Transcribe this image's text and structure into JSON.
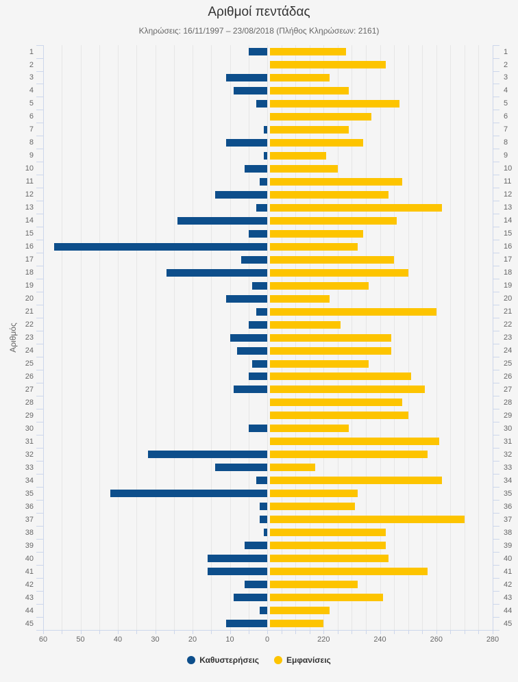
{
  "header": {
    "title": "Αριθμοί πεντάδας",
    "subtitle": "Κληρώσεις: 16/11/1997 – 23/08/2018 (Πλήθος Κληρώσεων: 2161)"
  },
  "colors": {
    "delay": "#0d4e8b",
    "appearance": "#fdc400",
    "grid": "#e6e6e6",
    "axis": "#ccd6eb",
    "label": "#666666",
    "title": "#333333"
  },
  "legend": {
    "items": [
      {
        "label": "Καθυστερήσεις",
        "color": "#0d4e8b"
      },
      {
        "label": "Εμφανίσεις",
        "color": "#fdc400"
      }
    ]
  },
  "chart_data": {
    "type": "bar",
    "orientation": "horizontal-mirrored",
    "title": "Αριθμοί πεντάδας",
    "subtitle": "Κληρώσεις: 16/11/1997 – 23/08/2018 (Πλήθος Κληρώσεων: 2161)",
    "ylabel": "Αριθμός",
    "grid": "on",
    "legend_position": "bottom",
    "categories": [
      1,
      2,
      3,
      4,
      5,
      6,
      7,
      8,
      9,
      10,
      11,
      12,
      13,
      14,
      15,
      16,
      17,
      18,
      19,
      20,
      21,
      22,
      23,
      24,
      25,
      26,
      27,
      28,
      29,
      30,
      31,
      32,
      33,
      34,
      35,
      36,
      37,
      38,
      39,
      40,
      41,
      42,
      43,
      44,
      45
    ],
    "series": [
      {
        "name": "Καθυστερήσεις",
        "color": "#0d4e8b",
        "axis": "left",
        "values": [
          5,
          0,
          11,
          9,
          3,
          0,
          1,
          11,
          1,
          6,
          2,
          14,
          3,
          24,
          5,
          57,
          7,
          27,
          4,
          11,
          3,
          5,
          10,
          8,
          4,
          5,
          9,
          0,
          0,
          5,
          0,
          32,
          14,
          3,
          42,
          2,
          2,
          1,
          6,
          16,
          16,
          6,
          9,
          2,
          11
        ]
      },
      {
        "name": "Εμφανίσεις",
        "color": "#fdc400",
        "axis": "right",
        "values": [
          228,
          242,
          222,
          229,
          247,
          237,
          229,
          234,
          221,
          225,
          248,
          243,
          262,
          246,
          234,
          232,
          245,
          250,
          236,
          222,
          260,
          226,
          244,
          244,
          236,
          251,
          256,
          248,
          250,
          229,
          261,
          257,
          217,
          262,
          232,
          231,
          270,
          242,
          242,
          243,
          257,
          232,
          241,
          222,
          220
        ]
      }
    ],
    "x_axis_left": {
      "ticks": [
        60,
        50,
        40,
        30,
        20,
        10,
        0
      ],
      "min": 0,
      "max": 60,
      "reversed": true,
      "minor_step": 5
    },
    "x_axis_right": {
      "ticks": [
        220,
        240,
        260,
        280
      ],
      "min": 200,
      "max": 280,
      "minor_step": 5
    }
  }
}
